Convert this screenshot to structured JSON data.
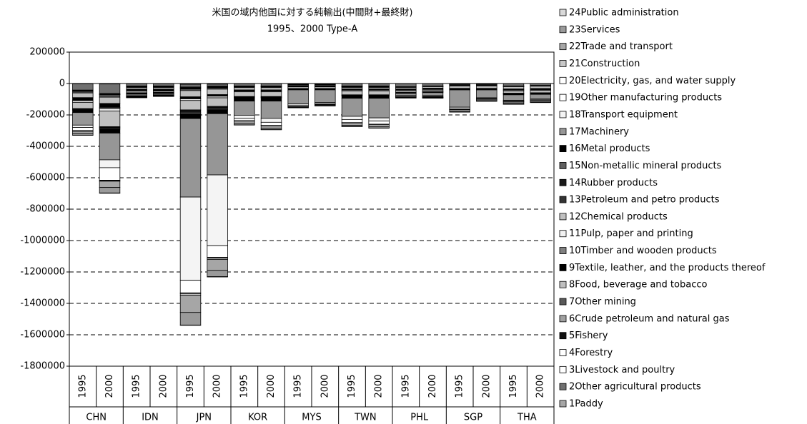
{
  "chart_data": {
    "type": "bar",
    "stacked": true,
    "title": "米国の域内他国に対する純輸出(中間財+最終財)",
    "subtitle": "1995、2000 Type-A",
    "categories": [
      "1995",
      "2000",
      "1995",
      "2000",
      "1995",
      "2000",
      "1995",
      "2000",
      "1995",
      "2000",
      "1995",
      "2000",
      "1995",
      "2000",
      "1995",
      "2000",
      "1995",
      "2000"
    ],
    "groups": [
      "CHN",
      "IDN",
      "JPN",
      "KOR",
      "MYS",
      "TWN",
      "PHL",
      "SGP",
      "THA"
    ],
    "ylim": [
      -1800000,
      200000
    ],
    "yticks": [
      -1800000,
      -1600000,
      -1400000,
      -1200000,
      -1000000,
      -800000,
      -600000,
      -400000,
      -200000,
      0,
      200000
    ],
    "grid": true,
    "legend": "right",
    "series": [
      {
        "name": "1Paddy",
        "color": "#a6a6a6",
        "values": [
          -2000,
          -3000,
          -1000,
          -1000,
          -5000,
          -4000,
          -1000,
          -1000,
          -500,
          -500,
          -1000,
          -1000,
          -500,
          -500,
          -300,
          -300,
          -500,
          -500
        ]
      },
      {
        "name": "2Other agricultural products",
        "color": "#707070",
        "values": [
          -40000,
          -60000,
          -15000,
          -15000,
          -15000,
          -12000,
          -15000,
          -15000,
          -5000,
          -5000,
          -15000,
          -15000,
          -20000,
          -15000,
          -3000,
          -3000,
          -15000,
          -12000
        ]
      },
      {
        "name": "3Livestock and poultry",
        "color": "#ffffff",
        "values": [
          -3000,
          -4000,
          -1000,
          -1000,
          -5000,
          -4000,
          -2000,
          -2000,
          -1000,
          -1000,
          -2000,
          -2000,
          -1000,
          -1000,
          -1000,
          -1000,
          -1000,
          -1000
        ]
      },
      {
        "name": "4Forestry",
        "color": "#ffffff",
        "values": [
          -2000,
          -2000,
          -1000,
          -1000,
          -3000,
          -2000,
          -1000,
          -1000,
          -1000,
          -1000,
          -1000,
          -1000,
          -500,
          -500,
          -500,
          -500,
          -500,
          -500
        ]
      },
      {
        "name": "5Fishery",
        "color": "#111111",
        "values": [
          -2000,
          -2000,
          -1000,
          -1000,
          -5000,
          -4000,
          -1000,
          -1000,
          -500,
          -500,
          -1000,
          -1000,
          -500,
          -500,
          -500,
          -500,
          -500,
          -500
        ]
      },
      {
        "name": "6Crude petroleum and natural gas",
        "color": "#a0a0a0",
        "values": [
          -1000,
          -1000,
          -2000,
          -2000,
          -2000,
          -2000,
          -1000,
          -1000,
          -500,
          -500,
          -1000,
          -1000,
          -500,
          -500,
          -500,
          -500,
          -500,
          -500
        ]
      },
      {
        "name": "7Other mining",
        "color": "#595959",
        "values": [
          -10000,
          -15000,
          -5000,
          -5000,
          -10000,
          -8000,
          -5000,
          -5000,
          -2000,
          -2000,
          -4000,
          -4000,
          -2000,
          -2000,
          -1000,
          -1000,
          -2000,
          -2000
        ]
      },
      {
        "name": "8Food, beverage and tobacco",
        "color": "#bfbfbf",
        "values": [
          -30000,
          -40000,
          -10000,
          -10000,
          -40000,
          -35000,
          -15000,
          -15000,
          -5000,
          -5000,
          -10000,
          -10000,
          -10000,
          -10000,
          -5000,
          -5000,
          -15000,
          -15000
        ]
      },
      {
        "name": "9Textile, leather, and the products thereof",
        "color": "#000000",
        "values": [
          -15000,
          -25000,
          -5000,
          -5000,
          -8000,
          -6000,
          -5000,
          -5000,
          -2000,
          -2000,
          -5000,
          -5000,
          -5000,
          -5000,
          -1000,
          -1000,
          -5000,
          -5000
        ]
      },
      {
        "name": "10Timber and wooden products",
        "color": "#808080",
        "values": [
          -5000,
          -8000,
          -3000,
          -3000,
          -5000,
          -4000,
          -2000,
          -2000,
          -2000,
          -2000,
          -2000,
          -2000,
          -2000,
          -2000,
          -1000,
          -1000,
          -2000,
          -2000
        ]
      },
      {
        "name": "11Pulp, paper and printing",
        "color": "#f2f2f2",
        "values": [
          -10000,
          -15000,
          -5000,
          -4000,
          -10000,
          -10000,
          -5000,
          -5000,
          -2000,
          -2000,
          -5000,
          -5000,
          -5000,
          -5000,
          -2000,
          -2000,
          -5000,
          -5000
        ]
      },
      {
        "name": "12Chemical products",
        "color": "#c0c0c0",
        "values": [
          -40000,
          -100000,
          -10000,
          -8000,
          -60000,
          -55000,
          -30000,
          -30000,
          -10000,
          -10000,
          -25000,
          -25000,
          -10000,
          -10000,
          -15000,
          -15000,
          -15000,
          -15000
        ]
      },
      {
        "name": "13Petroleum and petro products",
        "color": "#333333",
        "values": [
          -3000,
          -5000,
          -2000,
          -2000,
          -5000,
          -5000,
          -3000,
          -3000,
          -2000,
          -2000,
          -2000,
          -2000,
          -1000,
          -1000,
          -5000,
          -5000,
          -2000,
          -2000
        ]
      },
      {
        "name": "14Rubber products",
        "color": "#1a1a1a",
        "values": [
          -3000,
          -5000,
          -2000,
          -2000,
          -10000,
          -8000,
          -3000,
          -3000,
          -1000,
          -1000,
          -2000,
          -2000,
          -1000,
          -1000,
          -1000,
          -1000,
          -1000,
          -1000
        ]
      },
      {
        "name": "15Non-metallic mineral products",
        "color": "#606060",
        "values": [
          -4000,
          -6000,
          -2000,
          -2000,
          -10000,
          -8000,
          -3000,
          -3000,
          -1000,
          -1000,
          -3000,
          -3000,
          -1000,
          -1000,
          -1000,
          -1000,
          -2000,
          -2000
        ]
      },
      {
        "name": "16Metal products",
        "color": "#000000",
        "values": [
          -15000,
          -25000,
          -3000,
          -2000,
          -30000,
          -25000,
          -20000,
          -20000,
          -5000,
          -5000,
          -15000,
          -15000,
          -3000,
          -3000,
          -3000,
          -3000,
          -5000,
          -5000
        ]
      },
      {
        "name": "17Machinery",
        "color": "#969696",
        "values": [
          -80000,
          -170000,
          -10000,
          -8000,
          -500000,
          -390000,
          -90000,
          -110000,
          -90000,
          -80000,
          -115000,
          -125000,
          -15000,
          -20000,
          -110000,
          -50000,
          -35000,
          -30000
        ]
      },
      {
        "name": "18Transport equipment",
        "color": "#f4f4f4",
        "values": [
          -15000,
          -50000,
          -3000,
          -3000,
          -530000,
          -450000,
          -20000,
          -25000,
          -10000,
          -8000,
          -20000,
          -20000,
          -3000,
          -4000,
          -10000,
          -5000,
          -5000,
          -5000
        ]
      },
      {
        "name": "19Other manufacturing products",
        "color": "#ffffff",
        "values": [
          -20000,
          -80000,
          -3000,
          -2000,
          -80000,
          -75000,
          -15000,
          -20000,
          -5000,
          -5000,
          -20000,
          -20000,
          -5000,
          -5000,
          -5000,
          -4000,
          -5000,
          -5000
        ]
      },
      {
        "name": "20Electricity, gas, and water supply",
        "color": "#ffffff",
        "values": [
          -2000,
          -3000,
          -500,
          -500,
          -5000,
          -5000,
          -1000,
          -1000,
          -500,
          -500,
          -1000,
          -1000,
          -500,
          -500,
          -500,
          -500,
          -500,
          -500
        ]
      },
      {
        "name": "21Construction",
        "color": "#c8c8c8",
        "values": [
          -2000,
          -3000,
          -500,
          -500,
          -10000,
          -8000,
          -1000,
          -1000,
          -500,
          -500,
          -1000,
          -1000,
          -500,
          -500,
          -500,
          -500,
          -500,
          -500
        ]
      },
      {
        "name": "22Trade and transport",
        "color": "#a6a6a6",
        "values": [
          -15000,
          -40000,
          -3000,
          -2000,
          -110000,
          -70000,
          -15000,
          -15000,
          -5000,
          -5000,
          -15000,
          -15000,
          -3000,
          -3000,
          -10000,
          -8000,
          -10000,
          -8000
        ]
      },
      {
        "name": "23Services",
        "color": "#9a9a9a",
        "values": [
          -10000,
          -35000,
          -2000,
          -2000,
          -80000,
          -40000,
          -10000,
          -10000,
          -3000,
          -3000,
          -8000,
          -8000,
          -2000,
          -2000,
          -5000,
          -4000,
          -4000,
          -3000
        ]
      },
      {
        "name": "24Public administration",
        "color": "#d9d9d9",
        "values": [
          -1000,
          -2000,
          -500,
          -500,
          -2000,
          -2000,
          -500,
          -500,
          -500,
          -500,
          -500,
          -500,
          -500,
          -500,
          -500,
          -500,
          -500,
          -500
        ]
      }
    ]
  }
}
